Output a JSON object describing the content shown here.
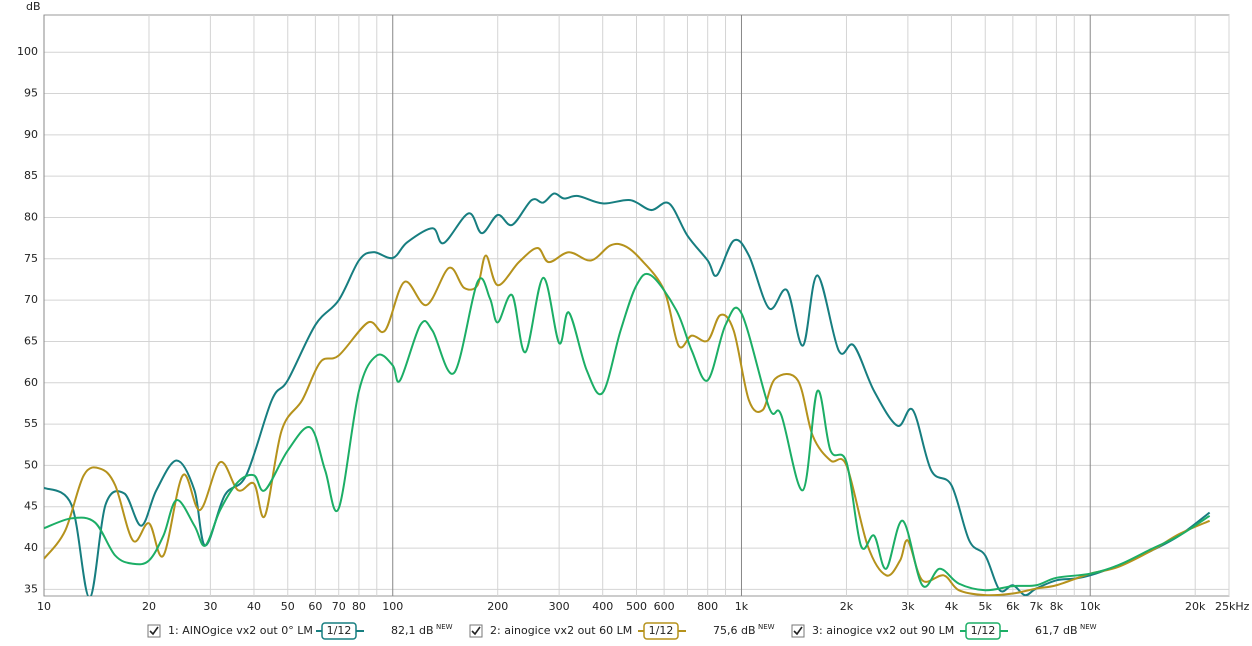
{
  "chart_data": {
    "type": "line",
    "y_axis_label": "dB",
    "log_x": true,
    "grid": true,
    "xlim": [
      10,
      25000
    ],
    "ylim": [
      34.2,
      104.5
    ],
    "yticks": [
      35,
      40,
      45,
      50,
      55,
      60,
      65,
      70,
      75,
      80,
      85,
      90,
      95,
      100
    ],
    "xticks": [
      10,
      20,
      30,
      40,
      50,
      60,
      70,
      80,
      100,
      200,
      300,
      400,
      500,
      600,
      800,
      {
        "value": 1000,
        "label": "1k"
      },
      {
        "value": 2000,
        "label": "2k"
      },
      {
        "value": 3000,
        "label": "3k"
      },
      {
        "value": 4000,
        "label": "4k"
      },
      {
        "value": 5000,
        "label": "5k"
      },
      {
        "value": 6000,
        "label": "6k"
      },
      {
        "value": 7000,
        "label": "7k"
      },
      {
        "value": 8000,
        "label": "8k"
      },
      {
        "value": 10000,
        "label": "10k"
      },
      {
        "value": 20000,
        "label": "20k"
      },
      {
        "value": 25000,
        "label": "25kHz"
      }
    ],
    "x_minor_ticks": [
      90,
      700,
      900,
      9000
    ],
    "series": [
      {
        "name": "1: AINOgice vx2 out 0° LM",
        "color": "#177e80",
        "smoothing": "1/12",
        "level": "82,1 dB",
        "level_note": "NEW",
        "x": [
          10,
          12,
          13.5,
          15,
          17,
          19,
          21,
          24,
          27,
          29,
          33,
          38,
          45,
          50,
          60,
          70,
          80,
          88,
          100,
          110,
          130,
          140,
          165,
          180,
          200,
          220,
          250,
          270,
          290,
          310,
          340,
          400,
          480,
          550,
          620,
          700,
          800,
          850,
          950,
          1050,
          1200,
          1350,
          1500,
          1650,
          1900,
          2100,
          2400,
          2800,
          3100,
          3500,
          4000,
          4500,
          5000,
          5500,
          6000,
          6500,
          7000,
          8000,
          9000,
          10000,
          12000,
          15000,
          18000,
          22000
        ],
        "values": [
          47.3,
          45.2,
          34,
          45.2,
          46.6,
          42.7,
          47,
          50.6,
          47,
          40.3,
          46.4,
          48.8,
          57.9,
          60.3,
          67,
          70,
          74.8,
          75.8,
          75.1,
          77,
          78.7,
          76.9,
          80.5,
          78.1,
          80.3,
          79.1,
          82.1,
          81.8,
          82.9,
          82.3,
          82.6,
          81.7,
          82.1,
          80.9,
          81.7,
          77.8,
          74.8,
          73,
          77.2,
          75.4,
          69,
          71.2,
          64.5,
          73,
          63.9,
          64.5,
          59,
          54.8,
          56.7,
          49.4,
          47.6,
          40.9,
          39.1,
          34.9,
          35.5,
          34.3,
          35.1,
          36.1,
          36.3,
          36.7,
          37.9,
          39.7,
          41.5,
          44.3
        ]
      },
      {
        "name": "2: ainogice vx2 out 60 LM",
        "color": "#b5921c",
        "smoothing": "1/12",
        "level": "75,6 dB",
        "level_note": "NEW",
        "x": [
          10,
          11.5,
          13,
          14.5,
          16,
          18,
          20,
          22,
          25,
          28,
          32,
          36,
          40,
          43,
          48,
          55,
          62,
          70,
          85,
          95,
          108,
          125,
          145,
          160,
          175,
          185,
          200,
          230,
          260,
          280,
          320,
          370,
          420,
          460,
          510,
          600,
          660,
          720,
          800,
          870,
          950,
          1050,
          1150,
          1250,
          1450,
          1600,
          1800,
          2000,
          2300,
          2600,
          2850,
          3000,
          3300,
          3800,
          4200,
          5000,
          6000,
          7000,
          8000,
          10000,
          12000,
          15000,
          18000,
          22000
        ],
        "values": [
          38.7,
          42.1,
          48.8,
          49.6,
          47.6,
          40.9,
          43,
          39.1,
          48.8,
          44.6,
          50.4,
          47,
          47.8,
          43.9,
          54.2,
          57.9,
          62.5,
          63.3,
          67.3,
          66.3,
          72.2,
          69.4,
          73.9,
          71.5,
          71.8,
          75.4,
          71.8,
          74.6,
          76.3,
          74.6,
          75.8,
          74.8,
          76.6,
          76.6,
          75.1,
          71.2,
          64.5,
          65.7,
          65.1,
          68.2,
          66.3,
          57.9,
          56.7,
          60.5,
          60.3,
          53.6,
          50.6,
          50,
          40.3,
          36.7,
          38.5,
          40.9,
          36.1,
          36.7,
          34.9,
          34.3,
          34.5,
          35.1,
          35.5,
          36.9,
          37.7,
          39.7,
          41.7,
          43.3
        ]
      },
      {
        "name": "3: ainogice vx2 out 90 LM",
        "color": "#1cae66",
        "smoothing": "1/12",
        "level": "61,7 dB",
        "level_note": "NEW",
        "x": [
          10,
          12,
          14,
          16,
          18,
          20,
          22,
          24,
          27,
          29,
          32,
          36,
          40,
          43,
          50,
          58,
          64,
          70,
          80,
          90,
          100,
          105,
          120,
          130,
          150,
          175,
          190,
          200,
          220,
          240,
          270,
          300,
          320,
          360,
          400,
          450,
          500,
          550,
          650,
          720,
          800,
          900,
          1000,
          1200,
          1300,
          1500,
          1650,
          1800,
          2000,
          2200,
          2400,
          2600,
          2900,
          3300,
          3700,
          4200,
          5000,
          6000,
          7000,
          8000,
          10000,
          12000,
          15000,
          18000,
          22000
        ],
        "values": [
          42.4,
          43.6,
          43.1,
          39.1,
          38.1,
          38.5,
          41.5,
          45.8,
          42.7,
          40.3,
          44.6,
          48,
          48.8,
          47,
          51.8,
          54.6,
          49.4,
          44.8,
          59,
          63.3,
          62.1,
          60.3,
          67,
          66.3,
          61.2,
          72.2,
          70.2,
          67.3,
          70.6,
          63.7,
          72.7,
          64.8,
          68.5,
          61.5,
          58.8,
          66.3,
          71.8,
          73,
          68.8,
          63.9,
          60.3,
          67,
          68.4,
          57,
          56.1,
          47,
          59,
          51.8,
          50.4,
          40.3,
          41.5,
          37.5,
          43.3,
          35.5,
          37.5,
          35.7,
          34.9,
          35.4,
          35.5,
          36.4,
          36.9,
          37.9,
          39.9,
          41.5,
          43.9
        ]
      }
    ]
  }
}
